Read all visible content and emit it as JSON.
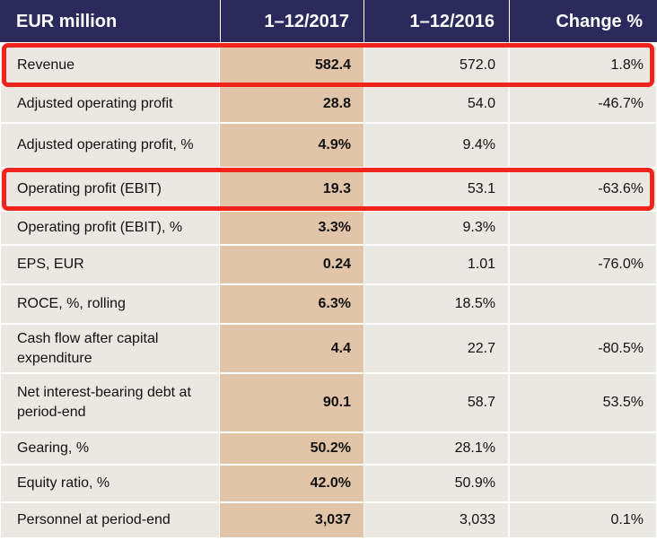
{
  "table": {
    "header": [
      "EUR million",
      "1–12/2017",
      "1–12/2016",
      "Change %"
    ],
    "rows": [
      [
        "Revenue",
        "582.4",
        "572.0",
        "1.8%"
      ],
      [
        "Adjusted operating profit",
        "28.8",
        "54.0",
        "-46.7%"
      ],
      [
        "Adjusted operating profit, %",
        "4.9%",
        "9.4%"
      ],
      [
        "Operating profit (EBIT)",
        "19.3",
        "53.1",
        "-63.6%"
      ],
      [
        "Operating profit (EBIT), %",
        "3.3%",
        "9.3%"
      ],
      [
        "EPS, EUR",
        "0.24",
        "1.01",
        "-76.0%"
      ],
      [
        "ROCE, %, rolling",
        "6.3%",
        "18.5%"
      ],
      [
        "Cash flow after capital expenditure",
        "4.4",
        "22.7",
        "-80.5%"
      ],
      [
        "Net interest-bearing debt at period-end",
        "90.1",
        "58.7",
        "53.5%"
      ],
      [
        "Gearing, %",
        "50.2%",
        "28.1%"
      ],
      [
        "Equity ratio, %",
        "42.0%",
        "50.9%"
      ],
      [
        "Personnel at period-end",
        "3,037",
        "3,033",
        "0.1%"
      ]
    ]
  }
}
